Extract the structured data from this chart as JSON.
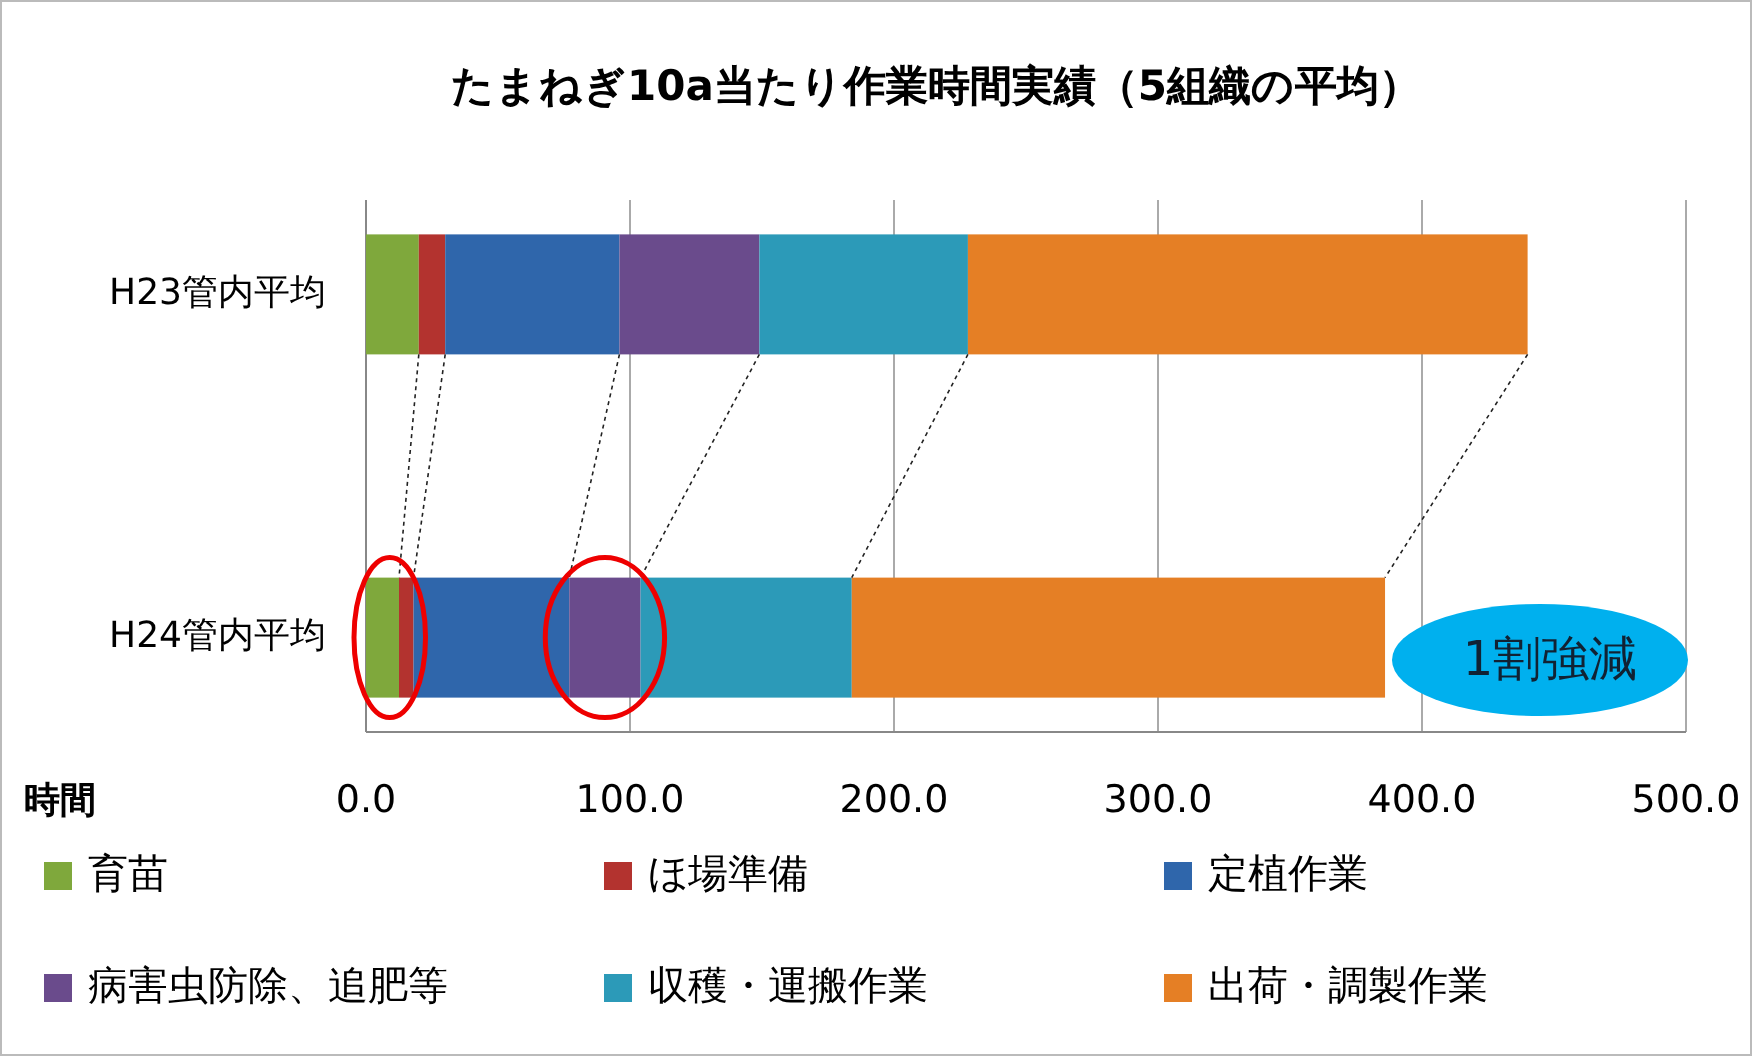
{
  "chart_data": {
    "type": "bar",
    "orientation": "horizontal",
    "stacked": true,
    "title": "たまねぎ10a当たり作業時間実績（5組織の平均）",
    "xlabel": "時間",
    "categories": [
      "H23管内平均",
      "H24管内平均"
    ],
    "series": [
      {
        "name": "育苗",
        "color": "#7fa83c",
        "values": [
          20,
          12.5
        ]
      },
      {
        "name": "ほ場準備",
        "color": "#b3332f",
        "values": [
          10,
          5.5
        ]
      },
      {
        "name": "定植作業",
        "color": "#2f66ab",
        "values": [
          66,
          59
        ]
      },
      {
        "name": "病害虫防除、追肥等",
        "color": "#6a4b8c",
        "values": [
          53,
          27
        ]
      },
      {
        "name": "収穫・運搬作業",
        "color": "#2c9ab8",
        "values": [
          79,
          80
        ]
      },
      {
        "name": "出荷・調製作業",
        "color": "#e57f25",
        "values": [
          212,
          202
        ]
      }
    ],
    "xlim": [
      0,
      500
    ],
    "xticks": [
      {
        "value": 0,
        "label": "0.0"
      },
      {
        "value": 100,
        "label": "100.0"
      },
      {
        "value": 200,
        "label": "200.0"
      },
      {
        "value": 300,
        "label": "300.0"
      },
      {
        "value": 400,
        "label": "400.0"
      },
      {
        "value": 500,
        "label": "500.0"
      }
    ],
    "grid": "x",
    "legend": "bottom",
    "annotations": [
      "1割強減"
    ]
  }
}
